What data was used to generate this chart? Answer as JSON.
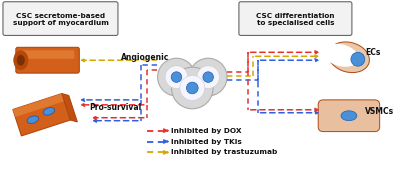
{
  "bg_color": "#ffffff",
  "left_box_text": "CSC secretome-based\nsupport of myocardium",
  "right_box_text": "CSC differentiation\nto specialised cells",
  "angiogenic_label": "Angiogenic",
  "prosurvival_label": "Pro-survival",
  "ecs_label": "ECs",
  "vsmcs_label": "VSMCs",
  "legend_dox": "Inhibited by DOX",
  "legend_tki": "Inhibited by TKIs",
  "legend_tras": "Inhibited by trastuzumab",
  "color_dox": "#e63030",
  "color_tki": "#3060e0",
  "color_tras": "#d4a800",
  "orange_main": "#d2601a",
  "orange_dark": "#b04810",
  "orange_light": "#e07830",
  "blue_nucleus": "#4a90d9",
  "cell_gray": "#d8d8d8",
  "cell_white": "#f5f5ff"
}
